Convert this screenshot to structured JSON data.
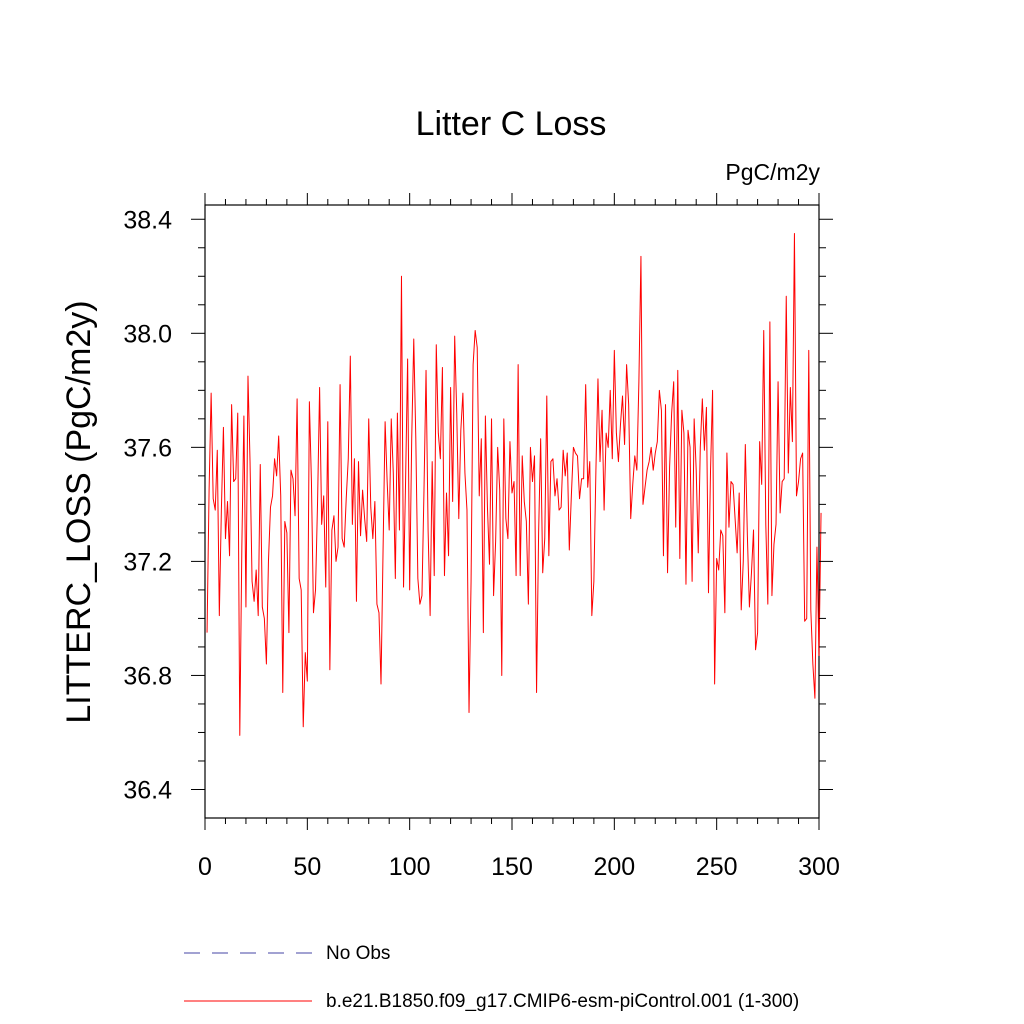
{
  "chart_data": {
    "type": "line",
    "title": "Litter C Loss",
    "units": "PgC/m2y",
    "xlabel": "",
    "ylabel": "LITTERC_LOSS  (PgC/m2y)",
    "xlim": [
      0,
      300
    ],
    "ylim": [
      36.3,
      38.45
    ],
    "x_ticks": [
      0,
      50,
      100,
      150,
      200,
      250,
      300
    ],
    "x_tick_labels": [
      "0",
      "50",
      "100",
      "150",
      "200",
      "250",
      "300"
    ],
    "y_ticks": [
      36.4,
      36.8,
      37.2,
      37.6,
      38.0,
      38.4
    ],
    "y_tick_labels": [
      "36.4",
      "36.8",
      "37.2",
      "37.6",
      "38.0",
      "38.4"
    ],
    "grid": false,
    "legend": [
      {
        "label": "No Obs",
        "style": "dashed",
        "color": "#6a6ab8"
      },
      {
        "label": "b.e21.B1850.f09_g17.CMIP6-esm-piControl.001 (1-300)",
        "style": "solid",
        "color": "#ff0000"
      }
    ],
    "series": [
      {
        "name": "b.e21.B1850.f09_g17.CMIP6-esm-piControl.001 (1-300)",
        "color": "#ff0000",
        "x_start": 1,
        "x_step": 1,
        "values": [
          36.95,
          37.45,
          37.79,
          37.42,
          37.38,
          37.59,
          37.01,
          37.38,
          37.67,
          37.28,
          37.41,
          37.22,
          37.75,
          37.48,
          37.49,
          37.72,
          36.59,
          37.25,
          37.71,
          37.04,
          37.85,
          37.55,
          37.13,
          37.06,
          37.17,
          37.01,
          37.54,
          37.04,
          37.0,
          36.84,
          37.2,
          37.39,
          37.43,
          37.56,
          37.5,
          37.64,
          37.43,
          36.74,
          37.34,
          37.3,
          36.95,
          37.52,
          37.49,
          37.36,
          37.77,
          37.14,
          37.1,
          36.62,
          36.88,
          36.78,
          37.76,
          37.48,
          37.02,
          37.1,
          37.41,
          37.81,
          37.33,
          37.43,
          37.11,
          37.69,
          36.82,
          37.31,
          37.36,
          37.2,
          37.25,
          37.82,
          37.28,
          37.25,
          37.42,
          37.56,
          37.92,
          37.33,
          37.56,
          37.06,
          37.55,
          37.29,
          37.45,
          37.35,
          37.27,
          37.7,
          37.39,
          37.28,
          37.41,
          37.05,
          37.02,
          36.77,
          37.24,
          37.69,
          37.48,
          37.31,
          37.7,
          37.51,
          37.14,
          37.72,
          37.31,
          38.2,
          37.11,
          37.48,
          37.91,
          37.1,
          37.63,
          37.98,
          37.63,
          37.14,
          37.05,
          37.08,
          37.45,
          37.87,
          37.31,
          37.01,
          37.55,
          37.15,
          37.96,
          37.65,
          37.56,
          37.88,
          37.15,
          37.44,
          37.22,
          37.81,
          37.41,
          37.99,
          37.72,
          37.35,
          37.66,
          37.79,
          37.51,
          37.38,
          36.67,
          37.13,
          37.89,
          38.01,
          37.95,
          37.43,
          37.63,
          36.95,
          37.71,
          37.39,
          37.19,
          37.7,
          37.08,
          37.27,
          37.6,
          37.45,
          36.8,
          37.7,
          37.35,
          37.28,
          37.62,
          37.44,
          37.48,
          37.15,
          37.89,
          37.15,
          37.57,
          37.41,
          37.34,
          37.05,
          37.6,
          37.48,
          37.57,
          36.74,
          37.3,
          37.63,
          37.16,
          37.28,
          37.78,
          37.22,
          37.55,
          37.56,
          37.43,
          37.49,
          37.38,
          37.39,
          37.59,
          37.5,
          37.58,
          37.24,
          37.43,
          37.6,
          37.58,
          37.57,
          37.42,
          37.49,
          37.49,
          37.82,
          37.46,
          37.55,
          37.01,
          37.13,
          37.52,
          37.84,
          37.55,
          37.73,
          37.38,
          37.65,
          37.6,
          37.8,
          37.56,
          37.94,
          37.65,
          37.55,
          37.68,
          37.78,
          37.61,
          37.89,
          37.75,
          37.35,
          37.47,
          37.57,
          37.52,
          37.83,
          38.27,
          37.4,
          37.46,
          37.52,
          37.55,
          37.6,
          37.52,
          37.58,
          37.62,
          37.8,
          37.73,
          37.22,
          37.75,
          37.16,
          37.53,
          37.72,
          37.83,
          37.32,
          37.87,
          37.21,
          37.73,
          37.65,
          37.12,
          37.66,
          37.6,
          37.13,
          37.7,
          37.52,
          37.23,
          37.6,
          37.77,
          37.59,
          37.74,
          37.09,
          37.52,
          37.8,
          36.77,
          37.21,
          37.17,
          37.31,
          37.29,
          37.02,
          37.58,
          37.32,
          37.48,
          37.47,
          37.35,
          37.23,
          37.44,
          37.03,
          37.2,
          37.61,
          37.29,
          37.04,
          37.16,
          37.31,
          36.89,
          36.95,
          37.62,
          37.47,
          38.01,
          37.33,
          37.05,
          38.04,
          37.08,
          37.26,
          37.33,
          37.83,
          37.37,
          37.48,
          37.49,
          38.13,
          37.51,
          37.81,
          37.62,
          38.35,
          37.43,
          37.48,
          37.56,
          37.58,
          36.99,
          37.0,
          37.94,
          37.03,
          36.84,
          36.72,
          37.25,
          36.87,
          37.37
        ]
      }
    ]
  }
}
